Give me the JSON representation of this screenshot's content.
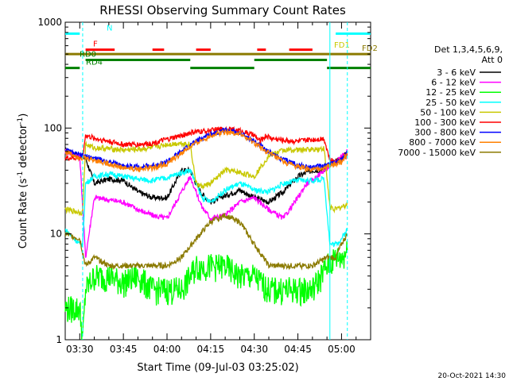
{
  "chart_data": {
    "type": "line",
    "title": "RHESSI Observing Summary Count Rates",
    "xlabel": "Start Time (09-Jul-03 03:25:02)",
    "ylabel_main": "Count Rate (s",
    "ylabel_sup1": "-1",
    "ylabel_mid": " detector",
    "ylabel_sup2": "-1",
    "ylabel_end": ")",
    "yscale": "log",
    "ylim": [
      1,
      1000
    ],
    "xlim_minutes": [
      -5,
      100
    ],
    "x_tick_labels": [
      {
        "label": "03:30",
        "value": 0
      },
      {
        "label": "03:45",
        "value": 15
      },
      {
        "label": "04:00",
        "value": 30
      },
      {
        "label": "04:15",
        "value": 45
      },
      {
        "label": "04:30",
        "value": 60
      },
      {
        "label": "04:45",
        "value": 75
      },
      {
        "label": "05:00",
        "value": 90
      }
    ],
    "y_tick_labels": [
      {
        "label": "1",
        "value": 1
      },
      {
        "label": "10",
        "value": 10
      },
      {
        "label": "100",
        "value": 100
      },
      {
        "label": "1000",
        "value": 1000
      }
    ],
    "legend_header": [
      "Det 1,3,4,5,6,9,",
      "Att 0"
    ],
    "legend_placement": "right",
    "series": [
      {
        "name": "3 - 6 keV",
        "color": "#000000",
        "x": [
          -5,
          0,
          2,
          5,
          10,
          15,
          20,
          25,
          30,
          35,
          38,
          40,
          42,
          45,
          50,
          55,
          60,
          65,
          70,
          75,
          80,
          84,
          86,
          88,
          90,
          92
        ],
        "y": [
          62,
          55,
          52,
          30,
          33,
          32,
          25,
          22,
          22,
          40,
          40,
          30,
          24,
          20,
          23,
          26,
          22,
          20,
          25,
          35,
          40,
          40,
          45,
          48,
          52,
          60
        ]
      },
      {
        "name": "6 - 12 keV",
        "color": "#ff00ff",
        "x": [
          -5,
          0,
          2,
          5,
          10,
          15,
          20,
          25,
          30,
          35,
          38,
          40,
          42,
          45,
          50,
          55,
          60,
          65,
          70,
          75,
          78,
          80,
          84,
          86,
          88,
          90,
          92
        ],
        "y": [
          60,
          55,
          6,
          22,
          21,
          20,
          17,
          15,
          14,
          25,
          35,
          25,
          18,
          14,
          15,
          20,
          22,
          17,
          14,
          22,
          30,
          32,
          40,
          44,
          48,
          55,
          60
        ]
      },
      {
        "name": "12 - 25 keV",
        "color": "#00ff00",
        "x": [
          -5,
          0,
          1,
          2,
          5,
          10,
          15,
          20,
          25,
          30,
          35,
          38,
          40,
          45,
          50,
          55,
          60,
          65,
          70,
          75,
          80,
          85,
          88,
          90,
          92
        ],
        "y": [
          2,
          2,
          1,
          3,
          4,
          4,
          3.5,
          4,
          3,
          3,
          3,
          4,
          5,
          5,
          5,
          4,
          4,
          3,
          3,
          3,
          3,
          5,
          6,
          6,
          7
        ]
      },
      {
        "name": "25 - 50 keV",
        "color": "#00ffff",
        "x": [
          -5,
          0,
          1,
          2,
          5,
          10,
          15,
          20,
          25,
          30,
          35,
          38,
          40,
          42,
          45,
          50,
          55,
          60,
          65,
          70,
          75,
          80,
          84,
          86,
          88,
          90,
          92
        ],
        "y": [
          11,
          8,
          8,
          30,
          35,
          37,
          35,
          33,
          32,
          34,
          38,
          40,
          30,
          22,
          20,
          26,
          30,
          26,
          25,
          30,
          32,
          32,
          33,
          8,
          8,
          9,
          11
        ]
      },
      {
        "name": "50 - 100 keV",
        "color": "#c8c800",
        "x": [
          -5,
          0,
          1,
          2,
          5,
          10,
          15,
          20,
          25,
          30,
          35,
          38,
          40,
          42,
          45,
          50,
          55,
          60,
          65,
          70,
          75,
          80,
          84,
          86,
          88,
          90,
          92
        ],
        "y": [
          17,
          16,
          16,
          70,
          65,
          64,
          62,
          63,
          65,
          70,
          72,
          70,
          30,
          28,
          30,
          40,
          38,
          35,
          55,
          62,
          62,
          63,
          64,
          18,
          17,
          18,
          19
        ]
      },
      {
        "name": "100 - 300 keV",
        "color": "#ff0000",
        "x": [
          -5,
          0,
          1,
          2,
          5,
          10,
          15,
          20,
          25,
          30,
          35,
          38,
          40,
          42,
          45,
          50,
          55,
          60,
          62,
          64,
          66,
          70,
          75,
          80,
          84,
          86,
          88,
          90,
          92
        ],
        "y": [
          52,
          52,
          55,
          85,
          80,
          75,
          70,
          70,
          72,
          78,
          85,
          90,
          92,
          93,
          95,
          98,
          95,
          85,
          75,
          85,
          80,
          77,
          75,
          78,
          80,
          50,
          48,
          52,
          55
        ]
      },
      {
        "name": "300 - 800 keV",
        "color": "#0000ff",
        "x": [
          -5,
          0,
          5,
          10,
          15,
          20,
          25,
          30,
          35,
          40,
          45,
          50,
          55,
          60,
          65,
          70,
          75,
          80,
          85,
          90,
          92
        ],
        "y": [
          62,
          55,
          52,
          48,
          44,
          43,
          44,
          48,
          60,
          75,
          88,
          96,
          90,
          75,
          60,
          50,
          45,
          42,
          45,
          50,
          60
        ]
      },
      {
        "name": "800 - 7000 keV",
        "color": "#ff8000",
        "x": [
          -5,
          0,
          5,
          10,
          15,
          20,
          25,
          30,
          35,
          40,
          45,
          50,
          55,
          60,
          65,
          70,
          75,
          80,
          85,
          90,
          92
        ],
        "y": [
          60,
          53,
          50,
          46,
          42,
          41,
          42,
          46,
          58,
          72,
          85,
          93,
          88,
          72,
          58,
          48,
          43,
          40,
          43,
          48,
          58
        ]
      },
      {
        "name": "7000 - 15000 keV",
        "color": "#8b7a00",
        "x": [
          -5,
          0,
          2,
          5,
          10,
          15,
          20,
          25,
          30,
          35,
          40,
          45,
          50,
          55,
          60,
          65,
          70,
          75,
          80,
          85,
          88,
          90,
          92
        ],
        "y": [
          10,
          9,
          5,
          6,
          5,
          5,
          5,
          5,
          5,
          6,
          9,
          13,
          15,
          13,
          8,
          5,
          5,
          5,
          5,
          6,
          6,
          8,
          10
        ]
      }
    ],
    "status_bars": [
      {
        "label": "N",
        "color": "#00ffff",
        "y": 780,
        "segments": [
          [
            -5,
            0
          ],
          [
            88,
            100
          ]
        ]
      },
      {
        "label": "F",
        "color": "#ff0000",
        "y": 550,
        "segments": [
          [
            2,
            12
          ],
          [
            25,
            29
          ],
          [
            40,
            45
          ],
          [
            61,
            64
          ],
          [
            72,
            80
          ]
        ]
      },
      {
        "label": "FD1",
        "color": "#c8c800",
        "y": 535,
        "segments": []
      },
      {
        "label": "FD2",
        "color": "#8b7a00",
        "y": 500,
        "segments": [
          [
            -5,
            100
          ]
        ]
      },
      {
        "label": "RD0",
        "color": "#008000",
        "y": 440,
        "segments": [
          [
            2,
            38
          ],
          [
            60,
            85
          ]
        ]
      },
      {
        "label": "RD4",
        "color": "#008000",
        "y": 370,
        "segments": [
          [
            -5,
            0
          ],
          [
            38,
            60
          ],
          [
            85,
            100
          ]
        ]
      }
    ],
    "vertical_markers": {
      "color": "#00ffff",
      "dashed_x": [
        1,
        92
      ],
      "solid_x": [
        86
      ]
    },
    "footer_date": "20-Oct-2021 14:30"
  }
}
